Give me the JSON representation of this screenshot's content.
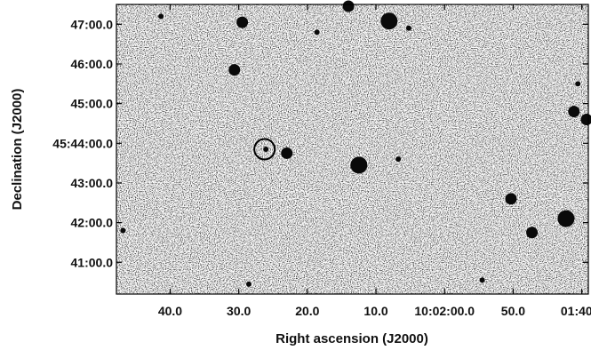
{
  "chart_data": {
    "type": "scatter",
    "title": "",
    "xlabel": "Right ascension (J2000)",
    "ylabel": "Declination (J2000)",
    "x_ticks": [
      "40.0",
      "30.0",
      "20.0",
      "10.0",
      "10:02:00.0",
      "50.0",
      "01:40.0"
    ],
    "y_ticks": [
      "47:00.0",
      "46:00.0",
      "45:00.0",
      "45:44:00.0",
      "43:00.0",
      "42:00.0",
      "41:00.0"
    ],
    "xlim": [
      104.5,
      140.5
    ],
    "ylim": [
      40.2,
      47.5
    ],
    "x_unit": "seconds of right ascension after 10:01:00",
    "y_unit": "arcminutes of declination after 45:00",
    "grid": false,
    "legend": "none",
    "background": "grey-noise",
    "target_marker": {
      "x": 129.2,
      "y": 43.85,
      "shape": "circle"
    },
    "sources": [
      {
        "x": 137.1,
        "y": 47.2,
        "mag": 1
      },
      {
        "x": 130.9,
        "y": 47.05,
        "mag": 2
      },
      {
        "x": 131.5,
        "y": 45.85,
        "mag": 2
      },
      {
        "x": 122.8,
        "y": 47.55,
        "mag": 2
      },
      {
        "x": 119.7,
        "y": 47.08,
        "mag": 3
      },
      {
        "x": 127.5,
        "y": 43.75,
        "mag": 2
      },
      {
        "x": 129.1,
        "y": 43.85,
        "mag": 1
      },
      {
        "x": 122.0,
        "y": 43.45,
        "mag": 3
      },
      {
        "x": 119.0,
        "y": 43.6,
        "mag": 1
      },
      {
        "x": 110.4,
        "y": 42.6,
        "mag": 2
      },
      {
        "x": 108.8,
        "y": 41.75,
        "mag": 2
      },
      {
        "x": 106.2,
        "y": 42.1,
        "mag": 3
      },
      {
        "x": 105.3,
        "y": 45.5,
        "mag": 1
      },
      {
        "x": 105.6,
        "y": 44.8,
        "mag": 2
      },
      {
        "x": 104.1,
        "y": 44.6,
        "mag": 2
      },
      {
        "x": 112.6,
        "y": 40.55,
        "mag": 1
      },
      {
        "x": 130.4,
        "y": 40.45,
        "mag": 1
      },
      {
        "x": 140.0,
        "y": 41.8,
        "mag": 1
      },
      {
        "x": 118.2,
        "y": 46.9,
        "mag": 1
      },
      {
        "x": 125.2,
        "y": 46.8,
        "mag": 1
      }
    ]
  }
}
